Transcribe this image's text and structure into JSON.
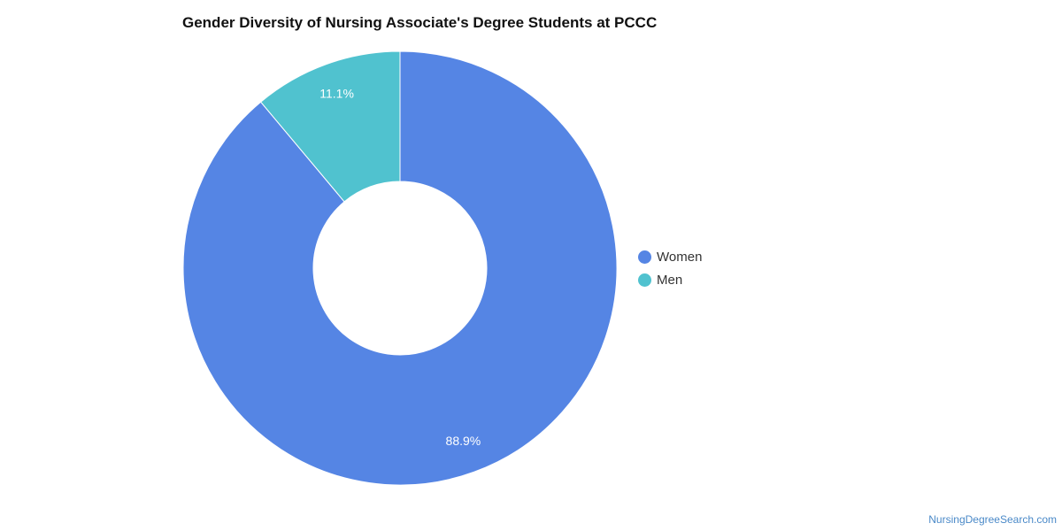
{
  "chart_data": {
    "type": "pie",
    "donut": true,
    "title": "Gender Diversity of Nursing Associate's Degree Students at PCCC",
    "slices": [
      {
        "label": "Women",
        "value": 88.9,
        "display": "88.9%",
        "color": "#5585e4"
      },
      {
        "label": "Men",
        "value": 11.1,
        "display": "11.1%",
        "color": "#50c2cf"
      }
    ],
    "legend_position": "right"
  },
  "footer": {
    "source": "NursingDegreeSearch.com"
  }
}
